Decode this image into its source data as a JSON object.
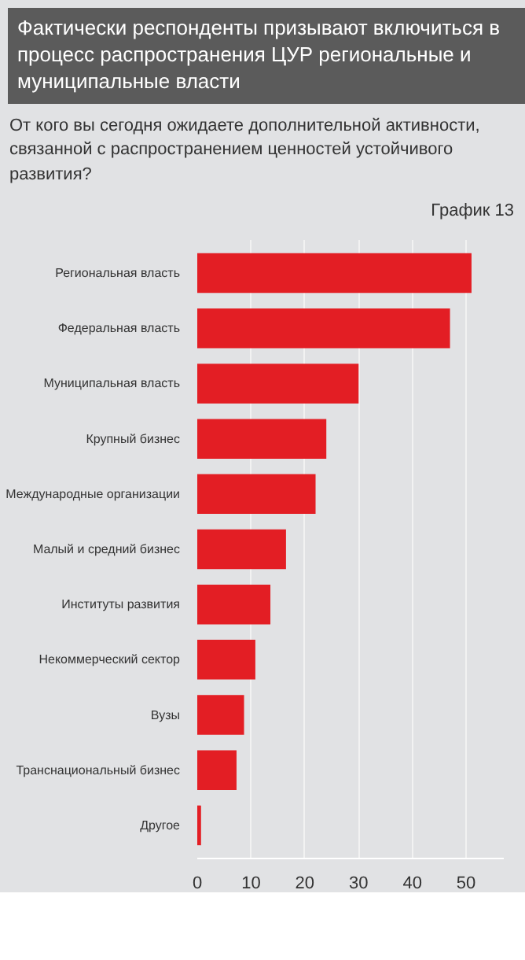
{
  "chart_data": {
    "type": "bar",
    "orientation": "horizontal",
    "title": "Фактически респонденты призывают включиться в процесс распространения ЦУР региональные и муниципальные власти",
    "subtitle": "От кого вы сегодня ожидаете дополнительной активности, связанной с распространением ценностей устойчивого развития?",
    "annotations": [
      "График 13"
    ],
    "categories": [
      "Региональная власть",
      "Федеральная власть",
      "Муниципальная власть",
      "Крупный бизнес",
      "Международные организации",
      "Малый и средний бизнес",
      "Институты развития",
      "Некоммерческий сектор",
      "Вузы",
      "Транснациональный бизнес",
      "Другое"
    ],
    "values": [
      51,
      47,
      30,
      24,
      22,
      16.5,
      13.6,
      10.8,
      8.7,
      7.3,
      0.7
    ],
    "color": "#e31e24",
    "xlim": [
      0,
      57
    ],
    "xticks": [
      0,
      10,
      20,
      30,
      40,
      50
    ],
    "grid": "x"
  }
}
